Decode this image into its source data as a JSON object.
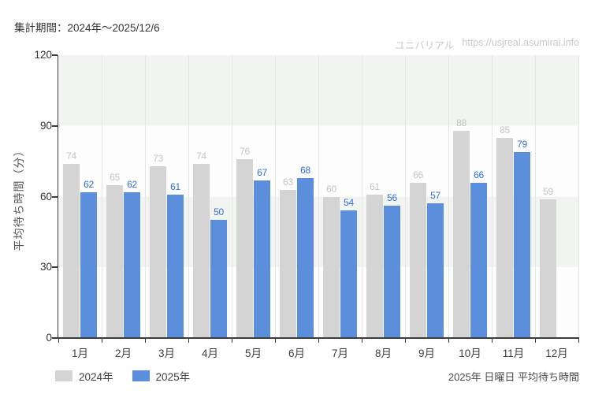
{
  "header": {
    "period_label": "集計期間：2024年～2025/12/6",
    "watermark_brand": "ユニバリアル",
    "watermark_url": "https://usjreal.asumirai.info"
  },
  "chart_data": {
    "type": "bar",
    "title": "",
    "xlabel": "",
    "ylabel": "平均待ち時間（分）",
    "ylim": [
      0,
      120
    ],
    "yticks": [
      0,
      30,
      60,
      90,
      120
    ],
    "grid": "vertical column lines, alternating horizontal bands every 30 units",
    "legend_position": "bottom-left",
    "categories": [
      "1月",
      "2月",
      "3月",
      "4月",
      "5月",
      "6月",
      "7月",
      "8月",
      "9月",
      "10月",
      "11月",
      "12月"
    ],
    "series": [
      {
        "name": "2024年",
        "color": "#d4d4d4",
        "label_color": "#c3c3c3",
        "values": [
          74,
          65,
          73,
          74,
          76,
          63,
          60,
          61,
          66,
          88,
          85,
          59
        ]
      },
      {
        "name": "2025年",
        "color": "#5b8edb",
        "label_color": "#2f6fd6",
        "values": [
          62,
          62,
          61,
          50,
          67,
          68,
          54,
          56,
          57,
          66,
          79,
          null
        ]
      }
    ]
  },
  "footer": {
    "note": "2025年 日曜日 平均待ち時間"
  }
}
